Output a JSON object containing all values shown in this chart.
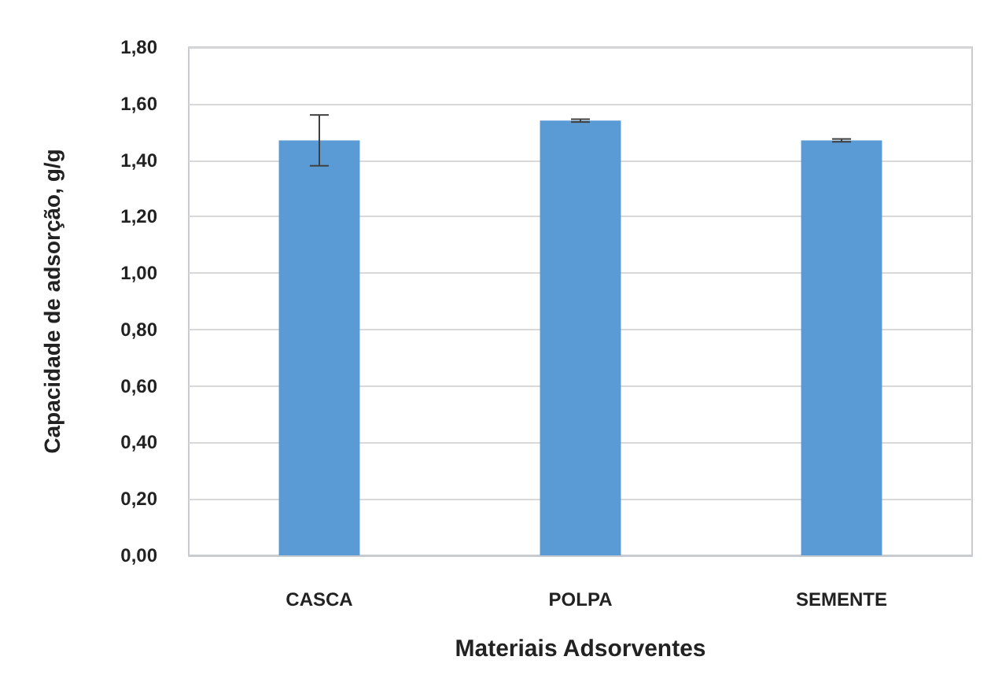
{
  "chart_data": {
    "type": "bar",
    "xlabel": "Materiais Adsorventes",
    "ylabel": "Capacidade de adsorção, g/g",
    "categories": [
      "CASCA",
      "POLPA",
      "SEMENTE"
    ],
    "values": [
      1.47,
      1.54,
      1.47
    ],
    "errors": [
      0.09,
      0.005,
      0.005
    ],
    "color": "#5b9bd5",
    "ylim": [
      0,
      1.8
    ],
    "yticks": [
      {
        "value": 0,
        "label": "0,00"
      },
      {
        "value": 0.2,
        "label": "0,20"
      },
      {
        "value": 0.4,
        "label": "0,40"
      },
      {
        "value": 0.6,
        "label": "0,60"
      },
      {
        "value": 0.8,
        "label": "0,80"
      },
      {
        "value": 1,
        "label": "1,00"
      },
      {
        "value": 1.2,
        "label": "1,20"
      },
      {
        "value": 1.4,
        "label": "1,40"
      },
      {
        "value": 1.6,
        "label": "1,60"
      },
      {
        "value": 1.8,
        "label": "1,80"
      }
    ],
    "grid": "y"
  }
}
